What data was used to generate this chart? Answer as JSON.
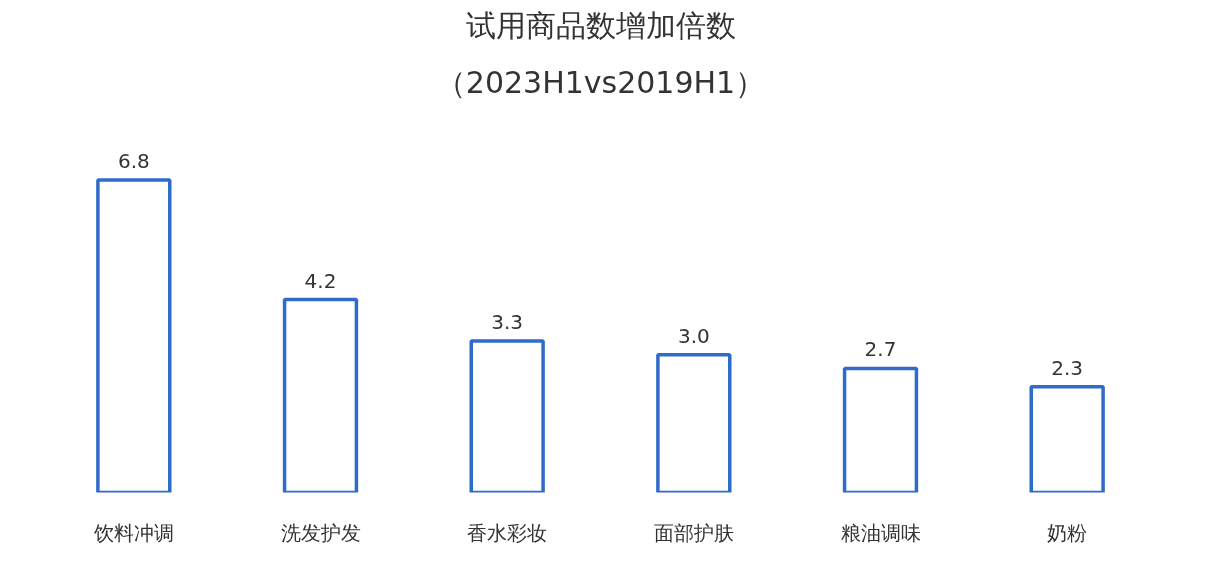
{
  "chart_data": {
    "type": "bar",
    "title": "试用商品数增加倍数",
    "subtitle": "（2023H1vs2019H1）",
    "categories": [
      "饮料冲调",
      "洗发护发",
      "香水彩妆",
      "面部护肤",
      "粮油调味",
      "奶粉"
    ],
    "values": [
      6.8,
      4.2,
      3.3,
      3.0,
      2.7,
      2.3
    ],
    "value_labels": [
      "6.8",
      "4.2",
      "3.3",
      "3.0",
      "2.7",
      "2.3"
    ],
    "color": "#2f6bc8",
    "grid": false
  }
}
